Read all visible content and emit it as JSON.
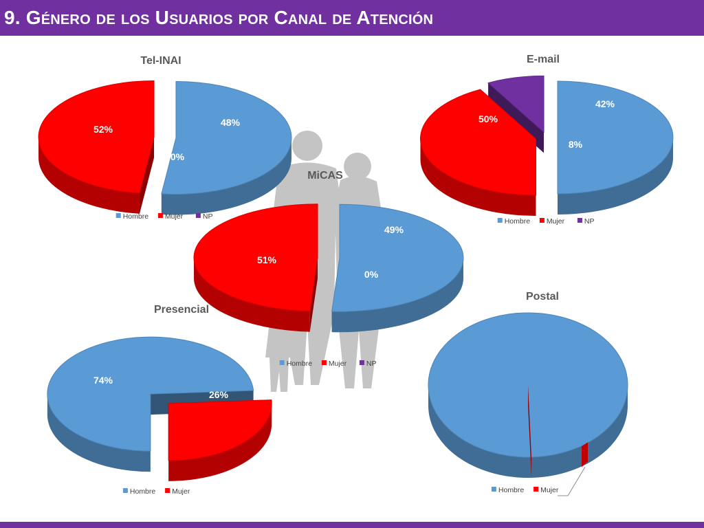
{
  "slide": {
    "title": "9. Género de los Usuarios por Canal de Atención"
  },
  "colors": {
    "accent": "#7030a0",
    "hombre": "#5b9bd5",
    "mujer": "#ff0000",
    "np": "#7030a0"
  },
  "chart_data": [
    {
      "type": "pie",
      "title": "Tel-INAI",
      "categories": [
        "Hombre",
        "Mujer",
        "NP"
      ],
      "values": [
        52,
        48,
        0
      ],
      "labels": [
        "52%",
        "48%",
        "0%"
      ],
      "legend": "bottom"
    },
    {
      "type": "pie",
      "title": "E-mail",
      "categories": [
        "Hombre",
        "Mujer",
        "NP"
      ],
      "values": [
        50,
        42,
        8
      ],
      "labels": [
        "50%",
        "42%",
        "8%"
      ],
      "legend": "bottom"
    },
    {
      "type": "pie",
      "title": "MiCAS",
      "categories": [
        "Hombre",
        "Mujer",
        "NP"
      ],
      "values": [
        51,
        49,
        0
      ],
      "labels": [
        "51%",
        "49%",
        "0%"
      ],
      "legend": "bottom"
    },
    {
      "type": "pie",
      "title": "Presencial",
      "categories": [
        "Hombre",
        "Mujer"
      ],
      "values": [
        74,
        26
      ],
      "labels": [
        "74%",
        "26%"
      ],
      "legend": "bottom"
    },
    {
      "type": "pie",
      "title": "Postal",
      "categories": [
        "Hombre",
        "Mujer"
      ],
      "values": [
        100,
        0
      ],
      "labels": [
        "",
        ""
      ],
      "legend": "bottom"
    }
  ]
}
